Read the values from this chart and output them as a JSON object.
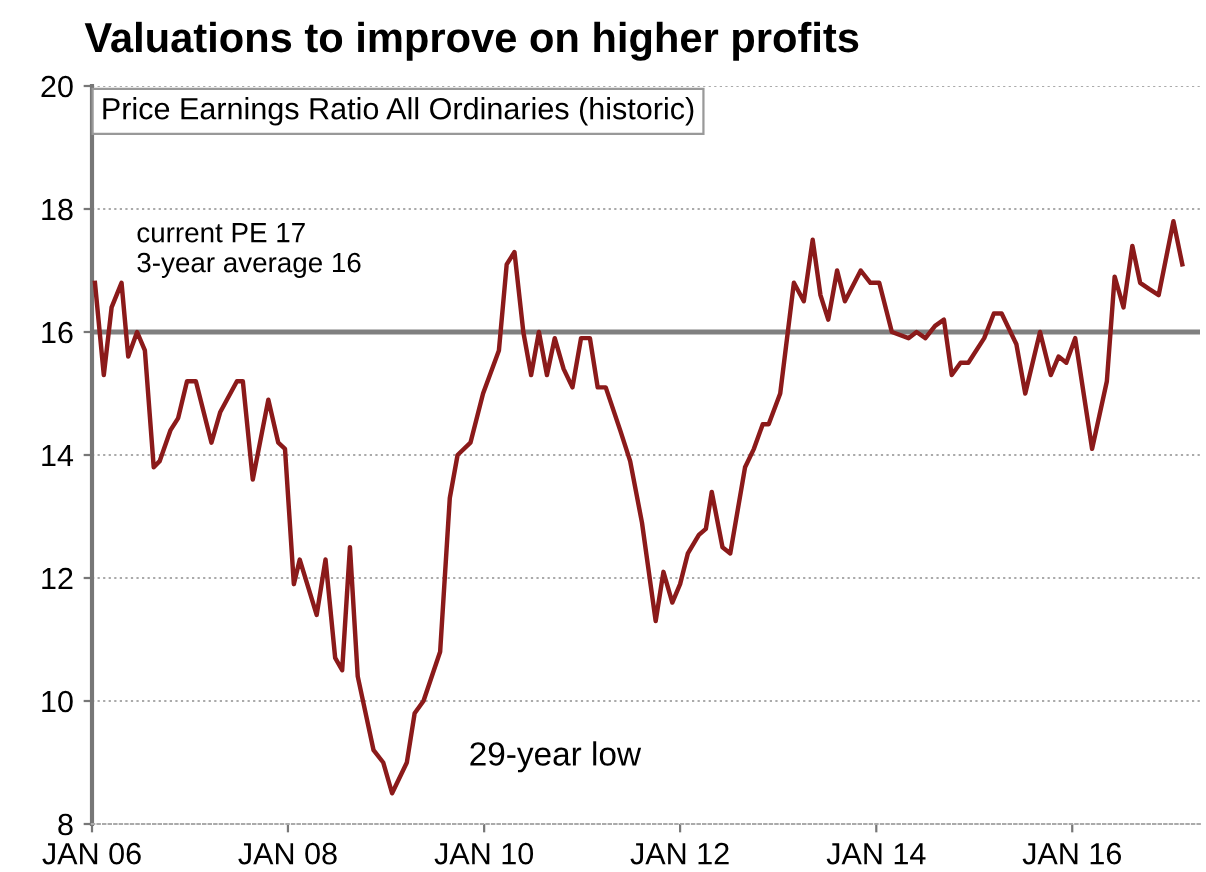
{
  "chart_data": {
    "type": "line",
    "title": "Valuations to improve on higher profits",
    "subtitle": "Price Earnings Ratio All Ordinaries (historic)",
    "annotations": [
      "current PE 17\n3-year average 16",
      "29-year low"
    ],
    "x": [
      "2006-01-12",
      "2006-02-14",
      "2006-03-15",
      "2006-04-21",
      "2006-05-16",
      "2006-06-18",
      "2006-07-17",
      "2006-08-19",
      "2006-09-10",
      "2006-10-20",
      "2006-11-18",
      "2006-12-21",
      "2007-01-23",
      "2007-03-22",
      "2007-04-24",
      "2007-06-25",
      "2007-07-17",
      "2007-08-23",
      "2007-10-20",
      "2007-11-26",
      "2007-12-21",
      "2008-01-23",
      "2008-02-14",
      "2008-04-17",
      "2008-05-20",
      "2008-06-25",
      "2008-07-21",
      "2008-08-19",
      "2008-09-17",
      "2008-11-15",
      "2008-12-21",
      "2009-01-23",
      "2009-03-19",
      "2009-04-17",
      "2009-05-20",
      "2009-07-21",
      "2009-08-26",
      "2009-09-24",
      "2009-11-11",
      "2009-12-28",
      "2010-02-25",
      "2010-03-26",
      "2010-04-24",
      "2010-05-27",
      "2010-06-25",
      "2010-07-24",
      "2010-08-23",
      "2010-09-21",
      "2010-10-24",
      "2010-11-26",
      "2010-12-28",
      "2011-01-30",
      "2011-02-28",
      "2011-03-30",
      "2011-05-23",
      "2011-06-29",
      "2011-08-12",
      "2011-10-02",
      "2011-10-31",
      "2011-12-03",
      "2012-01-01",
      "2012-01-30",
      "2012-03-11",
      "2012-04-06",
      "2012-04-28",
      "2012-06-07",
      "2012-07-06",
      "2012-08-30",
      "2012-10-02",
      "2012-11-04",
      "2012-11-26",
      "2013-01-08",
      "2013-02-28",
      "2013-04-06",
      "2013-05-09",
      "2013-06-07",
      "2013-07-06",
      "2013-08-08",
      "2013-09-06",
      "2013-11-04",
      "2013-12-10",
      "2014-01-12",
      "2014-02-28",
      "2014-05-01",
      "2014-05-31",
      "2014-07-03",
      "2014-08-08",
      "2014-09-10",
      "2014-10-09",
      "2014-11-11",
      "2014-12-10",
      "2015-02-07",
      "2015-03-15",
      "2015-04-13",
      "2015-06-07",
      "2015-07-10",
      "2015-08-12",
      "2015-09-03",
      "2015-10-13",
      "2015-11-11",
      "2015-12-10",
      "2016-01-12",
      "2016-03-15",
      "2016-05-09",
      "2016-06-07",
      "2016-07-10",
      "2016-08-12",
      "2016-09-10",
      "2016-10-13",
      "2016-11-18",
      "2017-01-12",
      "2017-02-14"
    ],
    "series": [
      {
        "color": "#8b1a1a",
        "values": [
          16.8,
          15.3,
          16.4,
          16.8,
          15.6,
          16.0,
          15.7,
          13.8,
          13.9,
          14.4,
          14.6,
          15.2,
          15.2,
          14.2,
          14.7,
          15.2,
          15.2,
          13.6,
          14.9,
          14.2,
          14.1,
          11.9,
          12.3,
          11.4,
          12.3,
          10.7,
          10.5,
          12.5,
          10.4,
          9.2,
          9.0,
          8.5,
          9.0,
          9.8,
          10.0,
          10.8,
          13.3,
          14.0,
          14.2,
          15.0,
          15.7,
          17.1,
          17.3,
          16.0,
          15.3,
          16.0,
          15.3,
          15.9,
          15.4,
          15.1,
          15.9,
          15.9,
          15.1,
          15.1,
          14.4,
          13.9,
          12.9,
          11.3,
          12.1,
          11.6,
          11.9,
          12.4,
          12.7,
          12.8,
          13.4,
          12.5,
          12.4,
          13.8,
          14.1,
          14.5,
          14.5,
          15.0,
          16.8,
          16.5,
          17.5,
          16.6,
          16.2,
          17.0,
          16.5,
          17.0,
          16.8,
          16.8,
          16.0,
          15.9,
          16.0,
          15.9,
          16.1,
          16.2,
          15.3,
          15.5,
          15.5,
          15.9,
          16.3,
          16.3,
          15.8,
          15.0,
          15.6,
          16.0,
          15.3,
          15.6,
          15.5,
          15.9,
          14.1,
          15.2,
          16.9,
          16.4,
          17.4,
          16.8,
          16.7,
          16.6,
          17.8,
          17.1
        ]
      }
    ],
    "xlim": [
      "2006-01-01",
      "2017-04-21"
    ],
    "xticks": [
      {
        "value": "2006-01-01",
        "label": "JAN 06"
      },
      {
        "value": "2008-01-01",
        "label": "JAN 08"
      },
      {
        "value": "2010-01-01",
        "label": "JAN 10"
      },
      {
        "value": "2012-01-01",
        "label": "JAN 12"
      },
      {
        "value": "2014-01-01",
        "label": "JAN 14"
      },
      {
        "value": "2016-01-01",
        "label": "JAN 16"
      }
    ],
    "ylim": [
      8,
      20
    ],
    "yticks": [
      8,
      10,
      12,
      14,
      16,
      18,
      20
    ],
    "grid": "y",
    "marker": "none",
    "line_style": "solid",
    "ref_lines": [
      {
        "axis": "y",
        "value": 16,
        "color": "#808080"
      }
    ]
  }
}
